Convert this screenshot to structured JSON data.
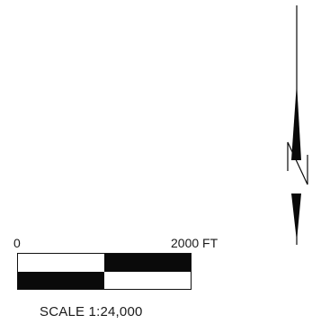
{
  "scale_bar": {
    "start_label": "0",
    "end_label": "2000 FT",
    "caption": "SCALE 1:24,000",
    "segments_top": [
      "light",
      "dark"
    ],
    "segments_bottom": [
      "dark",
      "light"
    ]
  },
  "north_arrow": {
    "letter": "N",
    "icon": "north-arrow-icon"
  },
  "colors": {
    "ink": "#0a0a0a",
    "background": "#ffffff"
  }
}
